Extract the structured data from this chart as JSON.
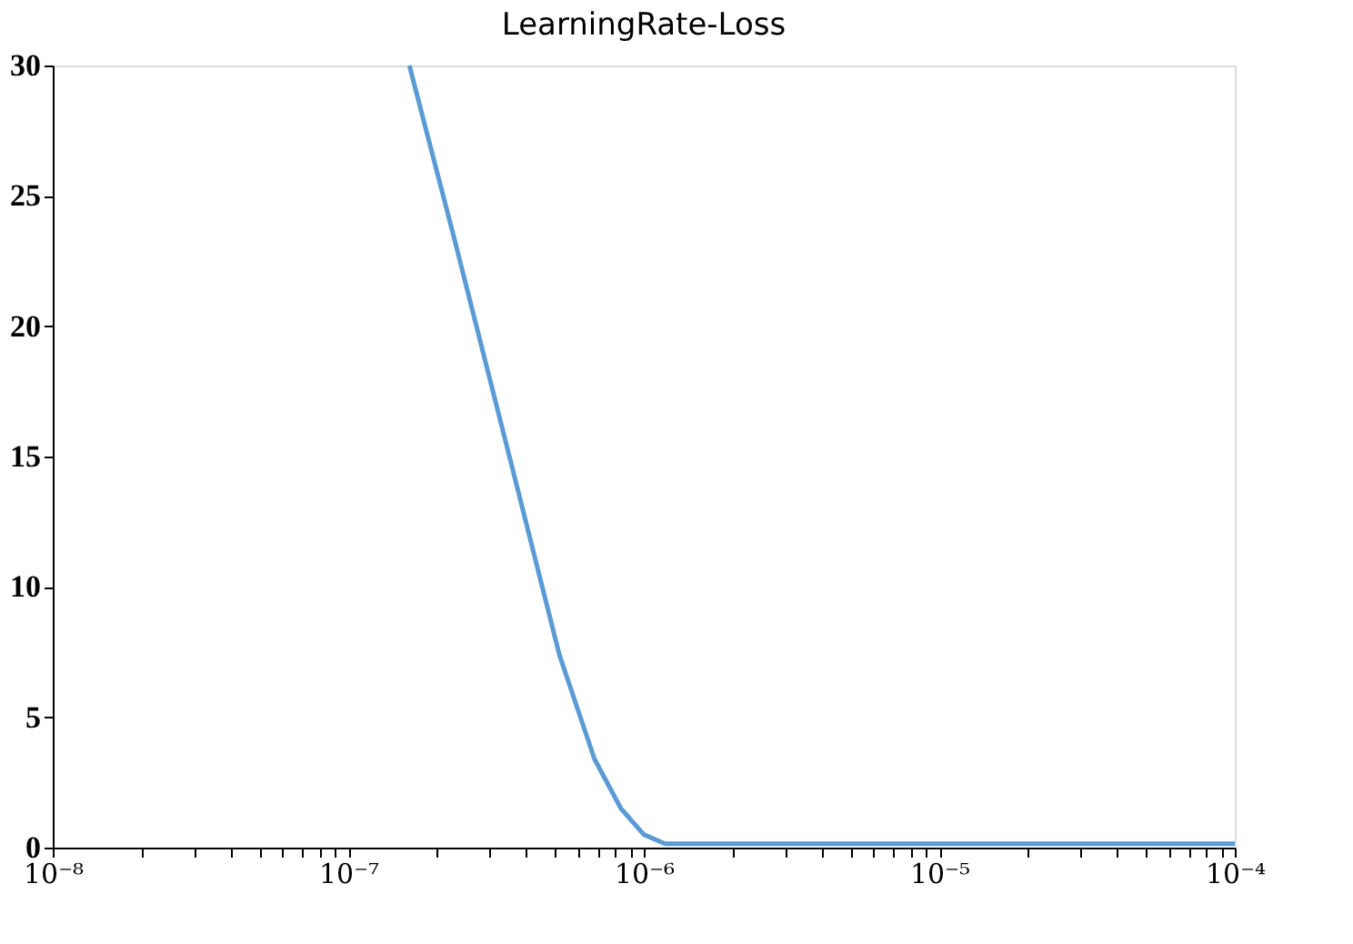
{
  "chart_data": {
    "type": "line",
    "title": "LearningRate-Loss",
    "x": [
      1.61e-07,
      2.28e-07,
      3.44e-07,
      5.18e-07,
      6.81e-07,
      8.37e-07,
      1e-06,
      1.18e-06,
      1.55e-06,
      4.05e-06,
      1e-05,
      3e-05,
      0.0001
    ],
    "series": [
      {
        "color": "#5b9bd5",
        "values": [
          30,
          23.4,
          15.4,
          7.4,
          3.4,
          1.5,
          0.5,
          0.15,
          0.15,
          0.15,
          0.15,
          0.15,
          0.15
        ]
      }
    ],
    "log": "x",
    "xlim": [
      1e-08,
      0.0001
    ],
    "ylim": [
      0,
      30
    ],
    "xticks": [
      {
        "value": 1e-08,
        "label": "10⁻⁸"
      },
      {
        "value": 2e-08,
        "label": null
      },
      {
        "value": 3e-08,
        "label": null
      },
      {
        "value": 4e-08,
        "label": null
      },
      {
        "value": 5e-08,
        "label": null
      },
      {
        "value": 6e-08,
        "label": null
      },
      {
        "value": 7e-08,
        "label": null
      },
      {
        "value": 8e-08,
        "label": null
      },
      {
        "value": 9e-08,
        "label": null
      },
      {
        "value": 1e-07,
        "label": "10⁻⁷"
      },
      {
        "value": 2e-07,
        "label": null
      },
      {
        "value": 3e-07,
        "label": null
      },
      {
        "value": 4e-07,
        "label": null
      },
      {
        "value": 5e-07,
        "label": null
      },
      {
        "value": 6e-07,
        "label": null
      },
      {
        "value": 7e-07,
        "label": null
      },
      {
        "value": 8e-07,
        "label": null
      },
      {
        "value": 9e-07,
        "label": null
      },
      {
        "value": 1e-06,
        "label": "10⁻⁶"
      },
      {
        "value": 2e-06,
        "label": null
      },
      {
        "value": 3e-06,
        "label": null
      },
      {
        "value": 4e-06,
        "label": null
      },
      {
        "value": 5e-06,
        "label": null
      },
      {
        "value": 6e-06,
        "label": null
      },
      {
        "value": 7e-06,
        "label": null
      },
      {
        "value": 8e-06,
        "label": null
      },
      {
        "value": 9e-06,
        "label": null
      },
      {
        "value": 1e-05,
        "label": "10⁻⁵"
      },
      {
        "value": 2e-05,
        "label": null
      },
      {
        "value": 3e-05,
        "label": null
      },
      {
        "value": 4e-05,
        "label": null
      },
      {
        "value": 5e-05,
        "label": null
      },
      {
        "value": 6e-05,
        "label": null
      },
      {
        "value": 7e-05,
        "label": null
      },
      {
        "value": 8e-05,
        "label": null
      },
      {
        "value": 9e-05,
        "label": null
      },
      {
        "value": 0.0001,
        "label": "10⁻⁴"
      }
    ],
    "yticks": [
      0,
      5,
      10,
      15,
      20,
      25,
      30
    ],
    "grid": false,
    "marker": "none",
    "line_style": "solid"
  }
}
